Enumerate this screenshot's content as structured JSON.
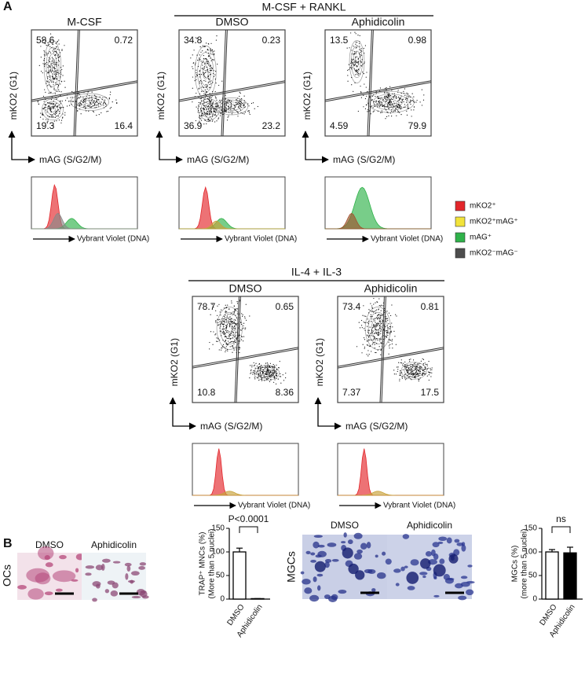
{
  "panel_labels": [
    "A",
    "B"
  ],
  "flow": {
    "axis_labels": {
      "y": "mKO2 (G1)",
      "x": "mAG (S/G2/M)",
      "histogram_x": "Vybrant Violet (DNA)"
    },
    "groups": [
      {
        "label": "M-CSF + RANKL"
      },
      {
        "label": "IL-4 + IL-3"
      }
    ],
    "plots": [
      {
        "title": "M-CSF",
        "quadrants": [
          58.6,
          0.72,
          19.3,
          16.4
        ]
      },
      {
        "title": "DMSO",
        "quadrants": [
          34.8,
          0.23,
          36.9,
          23.2
        ]
      },
      {
        "title": "Aphidicolin",
        "quadrants": [
          13.5,
          0.98,
          4.59,
          79.9
        ]
      },
      {
        "title": "DMSO",
        "quadrants": [
          78.7,
          0.65,
          10.8,
          8.36
        ]
      },
      {
        "title": "Aphidicolin",
        "quadrants": [
          73.4,
          0.81,
          7.37,
          17.5
        ]
      }
    ]
  },
  "legend": [
    {
      "label": "mKO2⁺",
      "color": "#e3262b"
    },
    {
      "label": "mKO2⁺mAG⁺",
      "color": "#f2e33a"
    },
    {
      "label": "mAG⁺",
      "color": "#2fb24a"
    },
    {
      "label": "mKO2⁻mAG⁻",
      "color": "#4d4d4d"
    }
  ],
  "micrographs": [
    {
      "row_label": "OCs",
      "titles": [
        "DMSO",
        "Aphidicolin"
      ]
    },
    {
      "row_label": "MGCs",
      "titles": [
        "DMSO",
        "Aphidicolin"
      ]
    }
  ],
  "chart_data": [
    {
      "type": "bar",
      "ylabel": [
        "TRAP⁺ MNCs (%)",
        "(More than 5 nuclei)"
      ],
      "categories": [
        "DMSO",
        "Aphidicolin"
      ],
      "values": [
        100,
        1
      ],
      "errors": [
        8,
        0
      ],
      "colors": [
        "#ffffff",
        "#ffffff"
      ],
      "ylim": [
        0,
        150
      ],
      "yticks": [
        0,
        50,
        100,
        150
      ],
      "annotation": "P<0.0001"
    },
    {
      "type": "bar",
      "ylabel": [
        "MGCs (%)",
        "(more than 5 nuclei)"
      ],
      "categories": [
        "DMSO",
        "Aphidicolin"
      ],
      "values": [
        100,
        98
      ],
      "errors": [
        5,
        12
      ],
      "colors": [
        "#ffffff",
        "#000000"
      ],
      "ylim": [
        0,
        150
      ],
      "yticks": [
        0,
        50,
        100,
        150
      ],
      "annotation": "ns"
    }
  ]
}
